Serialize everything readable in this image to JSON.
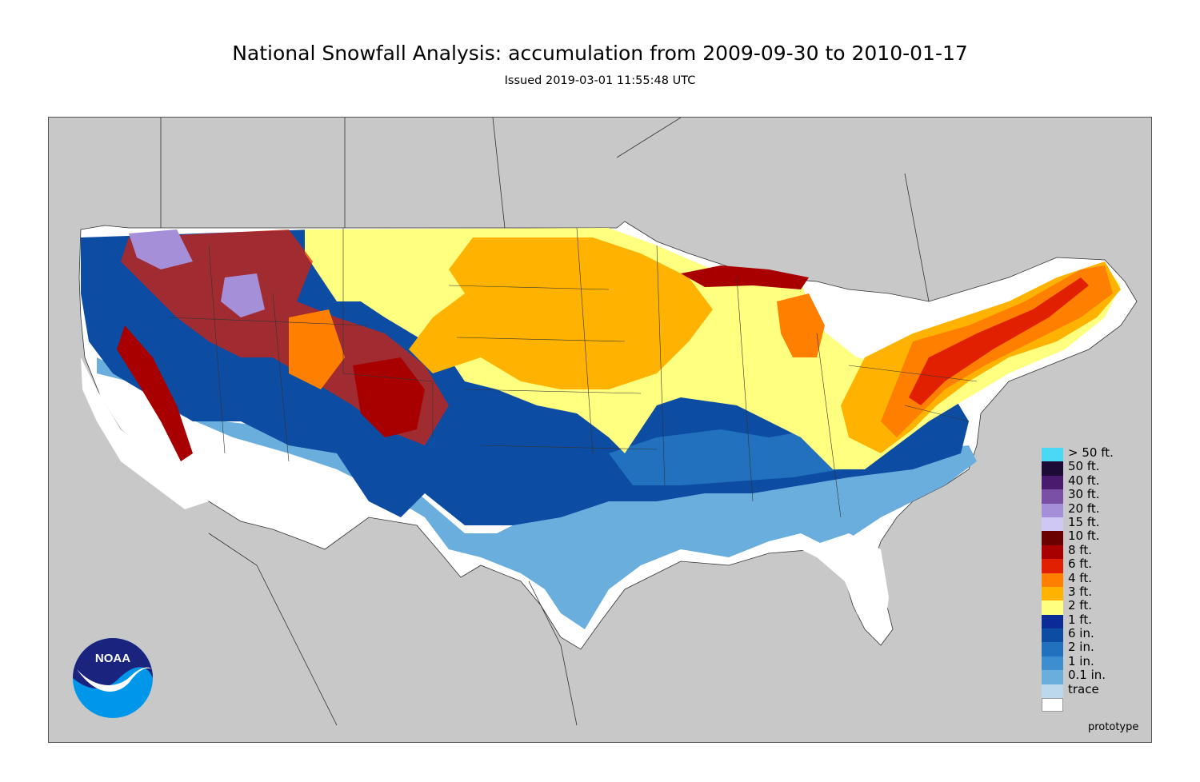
{
  "header": {
    "title": "National Snowfall Analysis: accumulation from 2009-09-30 to 2010-01-17",
    "subtitle": "Issued 2019-03-01 11:55:48 UTC"
  },
  "map": {
    "background_color": "#c8c8c8",
    "boundary_color": "#333333"
  },
  "legend": {
    "items": [
      {
        "label": "> 50 ft.",
        "color": "#4ad9f5"
      },
      {
        "label": "50 ft.",
        "color": "#1e0a36"
      },
      {
        "label": "40 ft.",
        "color": "#4a1a6e"
      },
      {
        "label": "30 ft.",
        "color": "#7a4fa6"
      },
      {
        "label": "20 ft.",
        "color": "#a58fd9"
      },
      {
        "label": "15 ft.",
        "color": "#cfc8f5"
      },
      {
        "label": "10 ft.",
        "color": "#6b0000"
      },
      {
        "label": "8 ft.",
        "color": "#a80000"
      },
      {
        "label": "6 ft.",
        "color": "#e02000"
      },
      {
        "label": "4 ft.",
        "color": "#ff7f00"
      },
      {
        "label": "3 ft.",
        "color": "#ffb300"
      },
      {
        "label": "2 ft.",
        "color": "#ffff80"
      },
      {
        "label": "1 ft.",
        "color": "#0b2b96"
      },
      {
        "label": "6 in.",
        "color": "#0c4ca3"
      },
      {
        "label": "2 in.",
        "color": "#2271bf"
      },
      {
        "label": "1 in.",
        "color": "#3c8ed1"
      },
      {
        "label": "0.1 in.",
        "color": "#6aaede"
      },
      {
        "label": "trace",
        "color": "#bcd8ec"
      }
    ],
    "final_swatch_color": "#ffffff"
  },
  "footer": {
    "note": "prototype",
    "logo_text": "NOAA"
  }
}
